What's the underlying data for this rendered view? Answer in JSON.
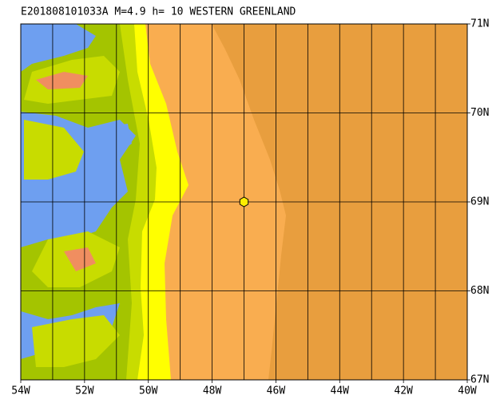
{
  "title": "E201808101033A M=4.9 h= 10 WESTERN GREENLAND",
  "xlim": [
    -54,
    -40
  ],
  "ylim": [
    67,
    71
  ],
  "xticks": [
    {
      "value": -54,
      "label": "54W"
    },
    {
      "value": -52,
      "label": "52W"
    },
    {
      "value": -50,
      "label": "50W"
    },
    {
      "value": -48,
      "label": "48W"
    },
    {
      "value": -46,
      "label": "46W"
    },
    {
      "value": -44,
      "label": "44W"
    },
    {
      "value": -42,
      "label": "42W"
    },
    {
      "value": -40,
      "label": "40W"
    }
  ],
  "yticks": [
    {
      "value": 67,
      "label": "67N"
    },
    {
      "value": 68,
      "label": "68N"
    },
    {
      "value": 69,
      "label": "69N"
    },
    {
      "value": 70,
      "label": "70N"
    },
    {
      "value": 71,
      "label": "71N"
    }
  ],
  "grid_lons": [
    -53,
    -52,
    -51,
    -50,
    -49,
    -48,
    -47,
    -46,
    -45,
    -44,
    -43,
    -42,
    -41
  ],
  "grid_lats": [
    68,
    69,
    70
  ],
  "epicenter": {
    "lon": -47,
    "lat": 69,
    "color": "#ffee00"
  }
}
